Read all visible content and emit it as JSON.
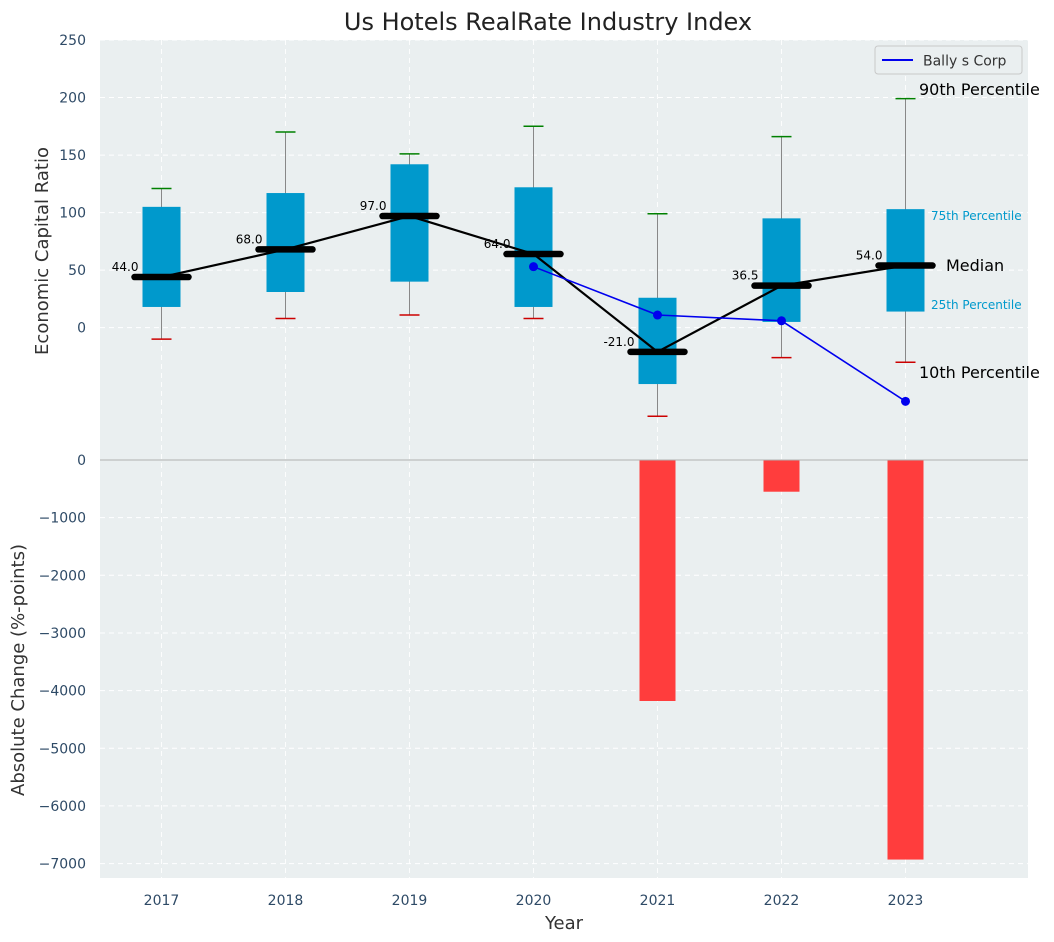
{
  "chart_data": {
    "type": "box",
    "title": "Us Hotels RealRate Industry Index",
    "xlabel": "Year",
    "categories": [
      "2017",
      "2018",
      "2019",
      "2020",
      "2021",
      "2022",
      "2023"
    ],
    "top_panel": {
      "ylabel": "Economic Capital Ratio",
      "ylim": [
        -115,
        250
      ],
      "yticks": [
        0,
        50,
        100,
        150,
        200,
        250
      ],
      "grid": true,
      "legend_position": "top-right",
      "legend_entries": [
        "Bally s Corp"
      ],
      "box_series": {
        "p10": [
          -10,
          8,
          11,
          8,
          -77,
          -26,
          -30
        ],
        "p25": [
          18,
          31,
          40,
          18,
          -49,
          5,
          14
        ],
        "median": [
          44.0,
          68.0,
          97.0,
          64.0,
          -21.0,
          36.5,
          54.0
        ],
        "p75": [
          105,
          117,
          142,
          122,
          26,
          95,
          103
        ],
        "p90": [
          121,
          170,
          151,
          175,
          99,
          166,
          199
        ]
      },
      "median_labels": [
        "44.0",
        "68.0",
        "97.0",
        "64.0",
        "-21.0",
        "36.5",
        "54.0"
      ],
      "company_series": {
        "name": "Bally s Corp",
        "x": [
          "2020",
          "2021",
          "2022",
          "2023"
        ],
        "values": [
          53,
          11,
          6,
          -64
        ]
      },
      "annotations": {
        "p90": "90th Percentile",
        "p75": "75th Percentile",
        "median": "Median",
        "p25": "25th Percentile",
        "p10": "10th Percentile"
      },
      "colors": {
        "box": "#0099cc",
        "median": "#000000",
        "whisker": "#888888",
        "cap_high": "#008000",
        "cap_low": "#cc0000",
        "company": "#0000ee",
        "background": "#eaeff0"
      }
    },
    "bottom_panel": {
      "type": "bar",
      "ylabel": "Absolute Change (%-points)",
      "ylim": [
        -7250,
        0
      ],
      "yticks": [
        0,
        -1000,
        -2000,
        -3000,
        -4000,
        -5000,
        -6000,
        -7000
      ],
      "ytick_labels": [
        "0",
        "−1000",
        "−2000",
        "−3000",
        "−4000",
        "−5000",
        "−6000",
        "−7000"
      ],
      "grid": true,
      "values": [
        0,
        0,
        0,
        0,
        -4180,
        -550,
        -6930
      ],
      "colors": {
        "bar": "#ff3d3d",
        "background": "#eaeff0"
      }
    }
  }
}
